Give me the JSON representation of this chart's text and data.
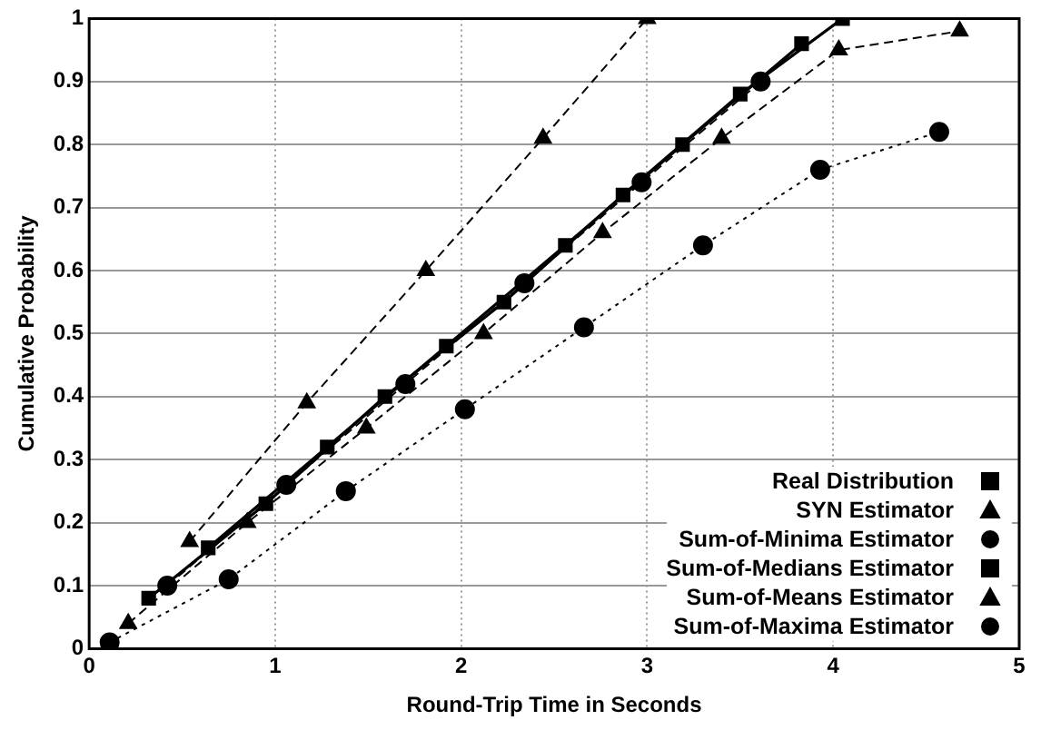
{
  "chart_data": {
    "type": "line",
    "xlabel": "Round-Trip Time in Seconds",
    "ylabel": "Cumulative Probability",
    "xlim": [
      0,
      5
    ],
    "xticks": [
      0,
      1,
      2,
      3,
      4,
      5
    ],
    "ylim": [
      0,
      1
    ],
    "yticks": [
      0,
      0.1,
      0.2,
      0.3,
      0.4,
      0.5,
      0.6,
      0.7,
      0.8,
      0.9,
      1
    ],
    "grid": true,
    "legend": "bottom right",
    "series": [
      {
        "name": "Real Distribution",
        "color": "#000000",
        "marker": "square",
        "line_style": "solid",
        "x": [
          0.64,
          1.28,
          1.92,
          2.56,
          3.19,
          3.83
        ],
        "values": [
          0.16,
          0.32,
          0.48,
          0.64,
          0.8,
          0.96
        ]
      },
      {
        "name": "SYN Estimator",
        "color": "#000000",
        "marker": "triangle",
        "line_style": "dashed",
        "x": [
          0.54,
          1.17,
          1.81,
          2.44,
          3.0
        ],
        "values": [
          0.17,
          0.39,
          0.6,
          0.81,
          1.0
        ]
      },
      {
        "name": "Sum-of-Minima Estimator",
        "color": "#000000",
        "marker": "circle",
        "line_style": "dashed",
        "x": [
          0.42,
          1.06,
          1.7,
          2.34,
          2.97,
          3.61
        ],
        "values": [
          0.1,
          0.26,
          0.42,
          0.58,
          0.74,
          0.9
        ]
      },
      {
        "name": "Sum-of-Medians Estimator",
        "color": "#000000",
        "marker": "square",
        "line_style": "solid",
        "x": [
          0.32,
          0.95,
          1.59,
          2.23,
          2.87,
          3.5,
          4.05
        ],
        "values": [
          0.08,
          0.23,
          0.4,
          0.55,
          0.72,
          0.88,
          1.0
        ]
      },
      {
        "name": "Sum-of-Means Estimator",
        "color": "#000000",
        "marker": "triangle",
        "line_style": "dashed",
        "x": [
          0.21,
          0.85,
          1.49,
          2.12,
          2.76,
          3.4,
          4.03,
          4.68
        ],
        "values": [
          0.04,
          0.2,
          0.35,
          0.5,
          0.66,
          0.81,
          0.95,
          0.98
        ]
      },
      {
        "name": "Sum-of-Maxima Estimator",
        "color": "#000000",
        "marker": "circle",
        "line_style": "dotted",
        "x": [
          0.11,
          0.75,
          1.38,
          2.02,
          2.66,
          3.3,
          3.93,
          4.57
        ],
        "values": [
          0.01,
          0.11,
          0.25,
          0.38,
          0.51,
          0.64,
          0.76,
          0.82
        ]
      }
    ]
  }
}
